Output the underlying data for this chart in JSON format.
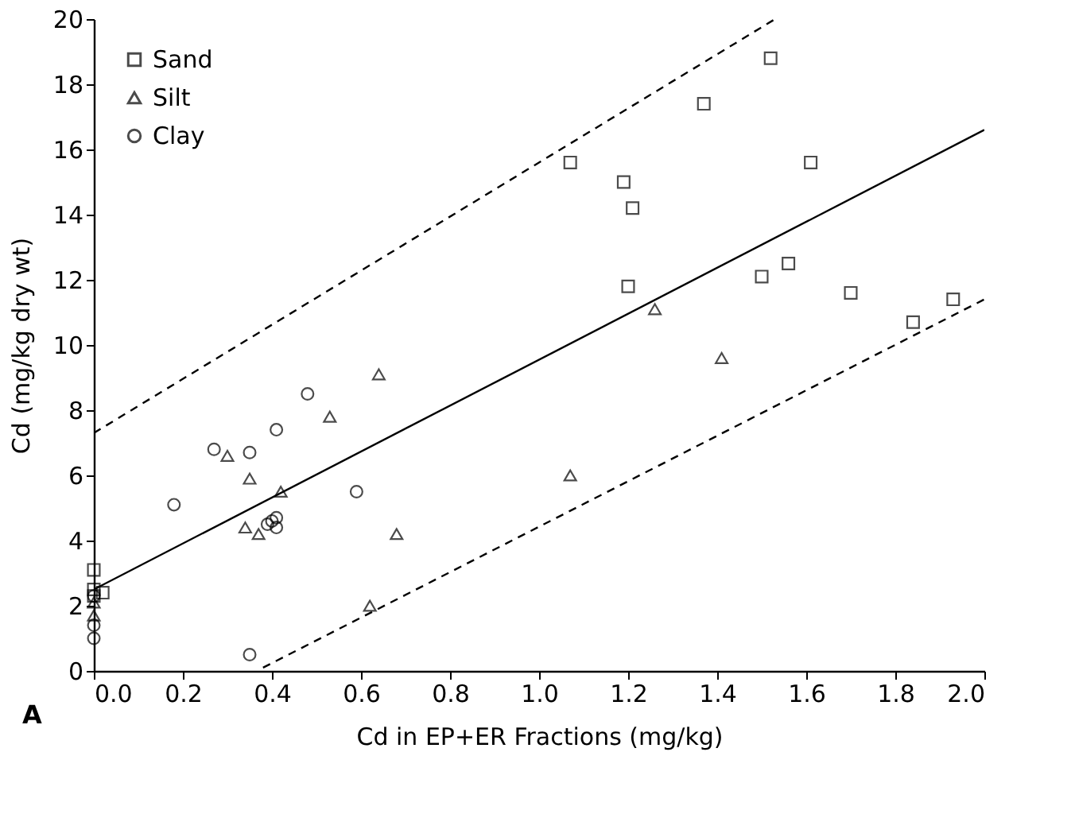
{
  "chart_data": {
    "type": "scatter",
    "xlabel": "Cd in EP+ER Fractions (mg/kg)",
    "ylabel": "Cd (mg/kg dry wt)",
    "xlim": [
      0,
      2.0
    ],
    "ylim": [
      0,
      20
    ],
    "xticks": [
      {
        "value": 0,
        "label": "0.0"
      },
      0.2,
      0.4,
      0.6,
      0.8,
      {
        "value": 1.0,
        "label": "1.0"
      },
      1.2,
      1.4,
      1.6,
      1.8,
      {
        "value": 2.0,
        "label": "2.0"
      }
    ],
    "yticks": [
      0,
      2,
      4,
      6,
      8,
      10,
      12,
      14,
      16,
      18,
      20
    ],
    "grid": false,
    "legend": "top left",
    "annotations": [
      "A"
    ],
    "series": [
      {
        "name": "Sand",
        "marker": "square",
        "color": "#000000",
        "x": [
          1.07,
          1.19,
          1.21,
          1.2,
          1.37,
          1.52,
          1.5,
          1.56,
          1.61,
          1.7,
          1.84,
          1.93,
          0.0,
          0.0,
          0.02,
          0.0
        ],
        "values": [
          15.6,
          15.0,
          14.2,
          11.8,
          17.4,
          18.8,
          12.1,
          12.5,
          15.6,
          11.6,
          10.7,
          11.4,
          3.1,
          2.5,
          2.4,
          2.3
        ]
      },
      {
        "name": "Silt",
        "marker": "triangle",
        "color": "#000000",
        "x": [
          0.64,
          0.53,
          0.3,
          0.35,
          0.42,
          0.34,
          0.37,
          0.68,
          0.62,
          1.07,
          1.26,
          1.41,
          0.0,
          0.0
        ],
        "values": [
          9.1,
          7.8,
          6.6,
          5.9,
          5.5,
          4.4,
          4.2,
          4.2,
          2.0,
          6.0,
          11.1,
          9.6,
          1.7,
          2.1
        ]
      },
      {
        "name": "Clay",
        "marker": "circle",
        "color": "#000000",
        "x": [
          0.48,
          0.41,
          0.27,
          0.35,
          0.18,
          0.59,
          0.4,
          0.41,
          0.39,
          0.41,
          0.35,
          0.0,
          0.0,
          0.0
        ],
        "values": [
          8.5,
          7.4,
          6.8,
          6.7,
          5.1,
          5.5,
          4.6,
          4.7,
          4.5,
          4.4,
          0.5,
          1.0,
          1.4,
          2.3
        ]
      },
      {
        "type": "line",
        "line_style": "solid",
        "color": "#000000",
        "x": [
          0.0,
          2.0
        ],
        "values": [
          2.5,
          16.6
        ]
      },
      {
        "type": "line",
        "line_style": "dashed",
        "color": "#000000",
        "x": [
          0.0,
          1.53
        ],
        "values": [
          7.3,
          20.0
        ]
      },
      {
        "type": "line",
        "line_style": "dashed",
        "color": "#000000",
        "x": [
          0.38,
          2.0
        ],
        "values": [
          0.1,
          11.4
        ]
      }
    ]
  }
}
